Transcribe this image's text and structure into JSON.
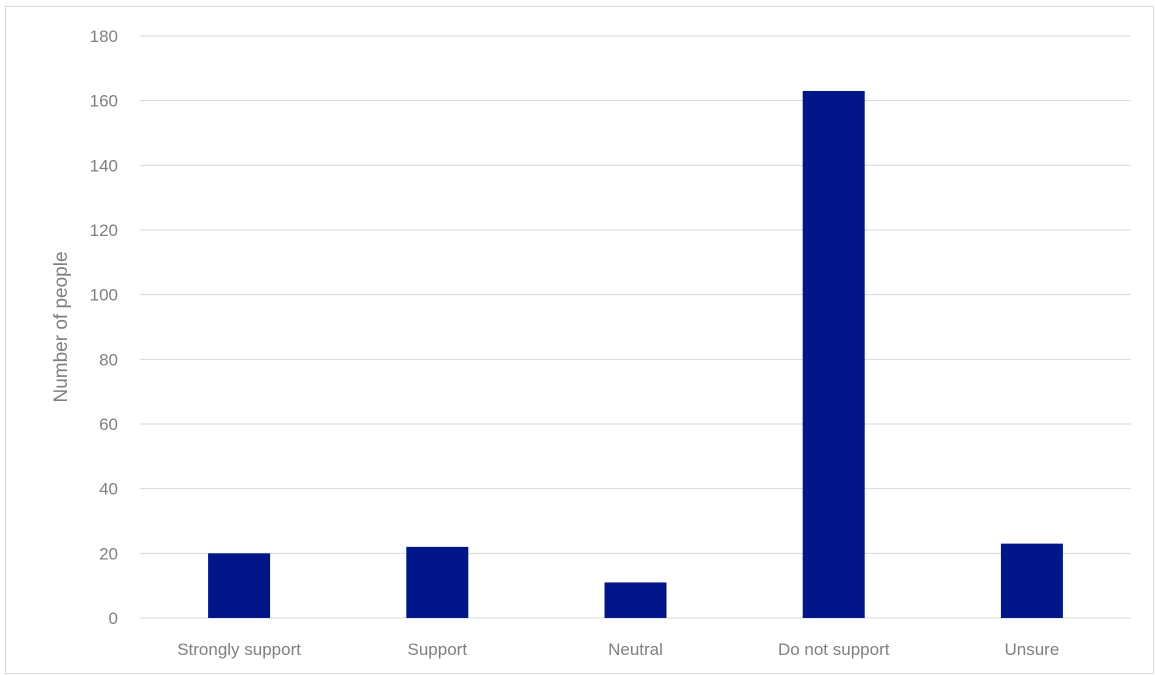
{
  "chart_data": {
    "type": "bar",
    "title": "",
    "xlabel": "",
    "ylabel": "Number of people",
    "categories": [
      "Strongly support",
      "Support",
      "Neutral",
      "Do not support",
      "Unsure"
    ],
    "values": [
      20,
      22,
      11,
      163,
      23
    ],
    "ylim": [
      0,
      180
    ],
    "yticks": [
      0,
      20,
      40,
      60,
      80,
      100,
      120,
      140,
      160,
      180
    ],
    "grid": true,
    "legend": "none",
    "colors": {
      "bar": "#001689",
      "grid": "#d9d9d9",
      "text": "#7f7f7f",
      "border": "#d9d9d9"
    }
  }
}
